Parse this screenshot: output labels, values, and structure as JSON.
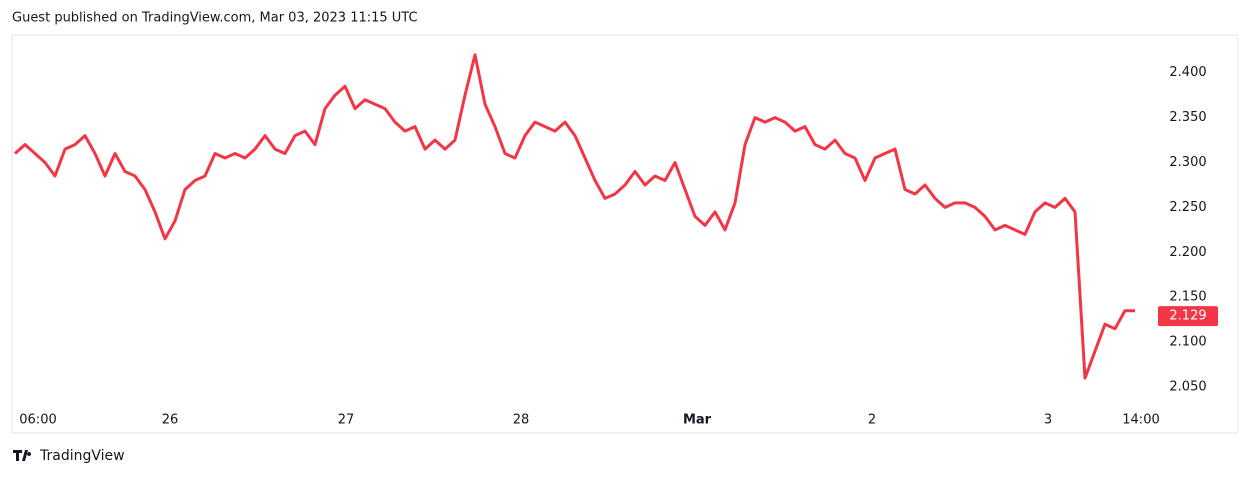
{
  "header": "Guest published on TradingView.com, Mar 03, 2023 11:15 UTC",
  "footer": "TradingView",
  "chart_data": {
    "type": "line",
    "color": "#f23645",
    "values": [
      2.31,
      2.32,
      2.31,
      2.3,
      2.285,
      2.315,
      2.32,
      2.33,
      2.31,
      2.285,
      2.31,
      2.29,
      2.285,
      2.27,
      2.245,
      2.215,
      2.235,
      2.27,
      2.28,
      2.285,
      2.31,
      2.305,
      2.31,
      2.305,
      2.315,
      2.33,
      2.315,
      2.31,
      2.33,
      2.335,
      2.32,
      2.36,
      2.375,
      2.385,
      2.36,
      2.37,
      2.365,
      2.36,
      2.345,
      2.335,
      2.34,
      2.315,
      2.325,
      2.315,
      2.325,
      2.375,
      2.42,
      2.365,
      2.34,
      2.31,
      2.305,
      2.33,
      2.345,
      2.34,
      2.335,
      2.345,
      2.33,
      2.305,
      2.28,
      2.26,
      2.265,
      2.275,
      2.29,
      2.275,
      2.285,
      2.28,
      2.3,
      2.27,
      2.24,
      2.23,
      2.245,
      2.225,
      2.255,
      2.32,
      2.35,
      2.345,
      2.35,
      2.345,
      2.335,
      2.34,
      2.32,
      2.315,
      2.325,
      2.31,
      2.305,
      2.28,
      2.305,
      2.31,
      2.315,
      2.27,
      2.265,
      2.275,
      2.26,
      2.25,
      2.255,
      2.255,
      2.25,
      2.24,
      2.225,
      2.23,
      2.225,
      2.22,
      2.245,
      2.255,
      2.25,
      2.26,
      2.245,
      2.06,
      2.09,
      2.12,
      2.115,
      2.135,
      2.135
    ],
    "xlim": [
      -0.3,
      114.3
    ],
    "xticks": [
      {
        "value": 2.3,
        "label": "06:00"
      },
      {
        "value": 15.5,
        "label": "26"
      },
      {
        "value": 33.1,
        "label": "27"
      },
      {
        "value": 50.6,
        "label": "28"
      },
      {
        "value": 68.2,
        "label": "Mar"
      },
      {
        "value": 85.7,
        "label": "2"
      },
      {
        "value": 103.3,
        "label": "3"
      },
      {
        "value": 112.6,
        "label": "14:00"
      }
    ],
    "ylim": [
      2.03,
      2.442
    ],
    "yticks": [
      {
        "value": 2.05,
        "label": "2.050"
      },
      {
        "value": 2.1,
        "label": "2.100"
      },
      {
        "value": 2.15,
        "label": "2.150"
      },
      {
        "value": 2.2,
        "label": "2.200"
      },
      {
        "value": 2.25,
        "label": "2.250"
      },
      {
        "value": 2.3,
        "label": "2.300"
      },
      {
        "value": 2.35,
        "label": "2.350"
      },
      {
        "value": 2.4,
        "label": "2.400"
      }
    ],
    "last_price": 2.129
  }
}
